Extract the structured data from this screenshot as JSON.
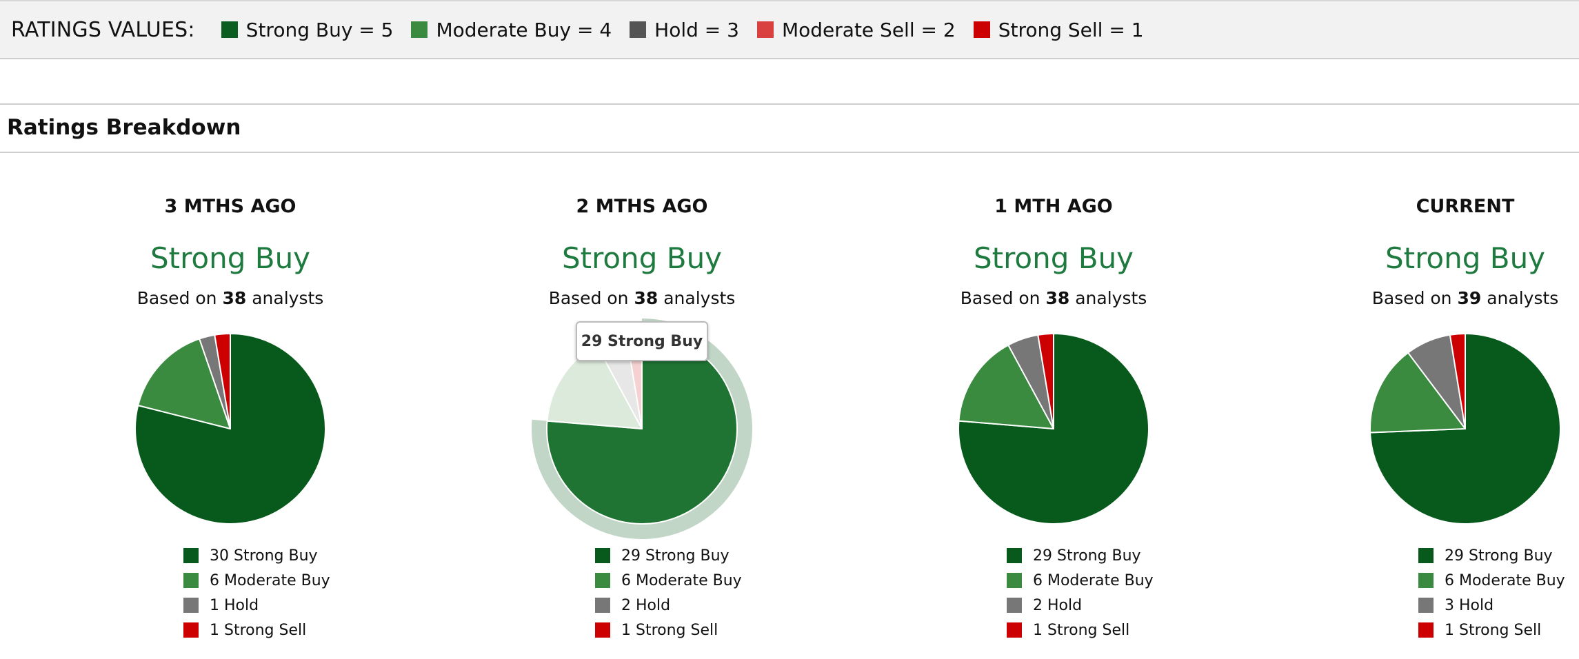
{
  "ratings_values": {
    "title": "RATINGS VALUES:",
    "items": [
      {
        "label": "Strong Buy = 5",
        "color": "#0b5e1f"
      },
      {
        "label": "Moderate Buy = 4",
        "color": "#3a8a3f"
      },
      {
        "label": "Hold = 3",
        "color": "#555555"
      },
      {
        "label": "Moderate Sell = 2",
        "color": "#d94040"
      },
      {
        "label": "Strong Sell = 1",
        "color": "#cc0000"
      }
    ]
  },
  "section": {
    "title": "Ratings Breakdown"
  },
  "tooltip": {
    "text": "29 Strong Buy"
  },
  "chart_data": [
    {
      "type": "pie",
      "title": "3 MTHS AGO",
      "consensus": "Strong Buy",
      "based_on": {
        "prefix": "Based on ",
        "count": "38",
        "suffix": " analysts"
      },
      "slices": [
        {
          "label": "Strong Buy",
          "value": 30,
          "legend": "30 Strong Buy",
          "color": "#075a1b"
        },
        {
          "label": "Moderate Buy",
          "value": 6,
          "legend": "6 Moderate Buy",
          "color": "#3a8a3f"
        },
        {
          "label": "Hold",
          "value": 1,
          "legend": "1 Hold",
          "color": "#777777"
        },
        {
          "label": "Strong Sell",
          "value": 1,
          "legend": "1 Strong Sell",
          "color": "#cc0000"
        }
      ]
    },
    {
      "type": "pie",
      "title": "2 MTHS AGO",
      "consensus": "Strong Buy",
      "based_on": {
        "prefix": "Based on ",
        "count": "38",
        "suffix": " analysts"
      },
      "highlighted": "Strong Buy",
      "slices": [
        {
          "label": "Strong Buy",
          "value": 29,
          "legend": "29 Strong Buy",
          "color": "#075a1b"
        },
        {
          "label": "Moderate Buy",
          "value": 6,
          "legend": "6 Moderate Buy",
          "color": "#3a8a3f"
        },
        {
          "label": "Hold",
          "value": 2,
          "legend": "2 Hold",
          "color": "#777777"
        },
        {
          "label": "Strong Sell",
          "value": 1,
          "legend": "1 Strong Sell",
          "color": "#cc0000"
        }
      ]
    },
    {
      "type": "pie",
      "title": "1 MTH AGO",
      "consensus": "Strong Buy",
      "based_on": {
        "prefix": "Based on ",
        "count": "38",
        "suffix": " analysts"
      },
      "slices": [
        {
          "label": "Strong Buy",
          "value": 29,
          "legend": "29 Strong Buy",
          "color": "#075a1b"
        },
        {
          "label": "Moderate Buy",
          "value": 6,
          "legend": "6 Moderate Buy",
          "color": "#3a8a3f"
        },
        {
          "label": "Hold",
          "value": 2,
          "legend": "2 Hold",
          "color": "#777777"
        },
        {
          "label": "Strong Sell",
          "value": 1,
          "legend": "1 Strong Sell",
          "color": "#cc0000"
        }
      ]
    },
    {
      "type": "pie",
      "title": "CURRENT",
      "consensus": "Strong Buy",
      "based_on": {
        "prefix": "Based on ",
        "count": "39",
        "suffix": " analysts"
      },
      "slices": [
        {
          "label": "Strong Buy",
          "value": 29,
          "legend": "29 Strong Buy",
          "color": "#075a1b"
        },
        {
          "label": "Moderate Buy",
          "value": 6,
          "legend": "6 Moderate Buy",
          "color": "#3a8a3f"
        },
        {
          "label": "Hold",
          "value": 3,
          "legend": "3 Hold",
          "color": "#777777"
        },
        {
          "label": "Strong Sell",
          "value": 1,
          "legend": "1 Strong Sell",
          "color": "#cc0000"
        }
      ]
    }
  ]
}
